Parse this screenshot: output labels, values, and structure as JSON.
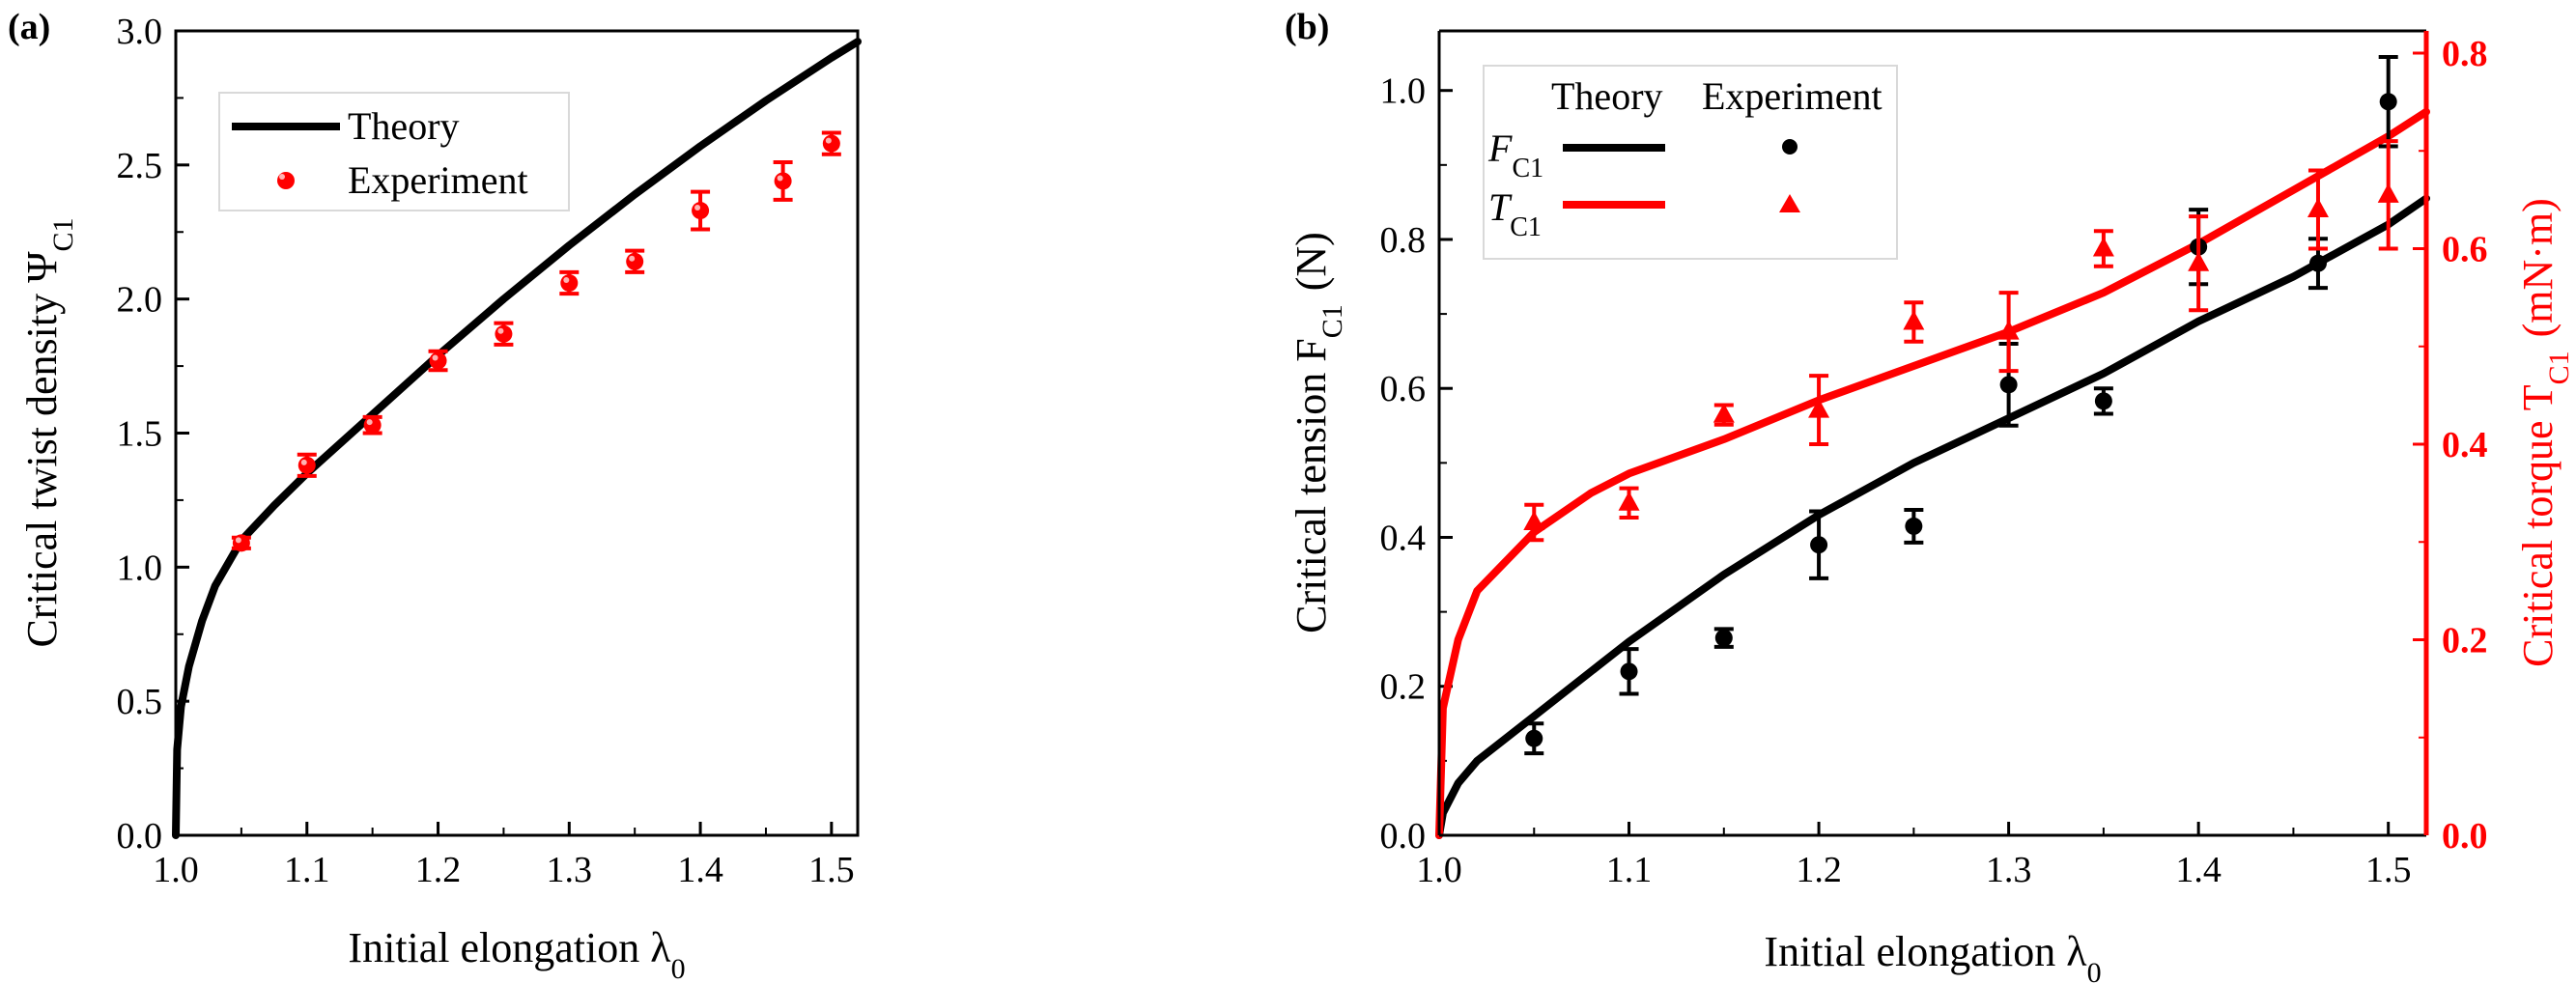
{
  "colors": {
    "theory_black": "#000000",
    "theory_red": "#ff0000",
    "axis_red": "#ff0000",
    "legend_border": "#d9d9d9"
  },
  "chart_data": [
    {
      "panel_label": "(a)",
      "type": "line",
      "xlabel": "Initial elongation  λ",
      "xlabel_sub": "0",
      "ylabel": "Critical twist density  Ψ",
      "ylabel_sub": "C1",
      "xlim": [
        1.0,
        1.52
      ],
      "ylim": [
        0.0,
        3.0
      ],
      "x_ticks": [
        "1.0",
        "1.1",
        "1.2",
        "1.3",
        "1.4",
        "1.5"
      ],
      "y_ticks": [
        "0.0",
        "0.5",
        "1.0",
        "1.5",
        "2.0",
        "2.5",
        "3.0"
      ],
      "legend": {
        "position": "top-left",
        "theory_label": "Theory",
        "experiment_label": "Experiment"
      },
      "theory": {
        "color": "#000000",
        "x": [
          1.0,
          1.001,
          1.004,
          1.01,
          1.02,
          1.03,
          1.05,
          1.075,
          1.1,
          1.15,
          1.2,
          1.25,
          1.3,
          1.35,
          1.4,
          1.45,
          1.5,
          1.52
        ],
        "y": [
          0.0,
          0.32,
          0.48,
          0.63,
          0.8,
          0.93,
          1.1,
          1.23,
          1.35,
          1.57,
          1.79,
          2.0,
          2.2,
          2.39,
          2.57,
          2.74,
          2.9,
          2.96
        ]
      },
      "experiment": {
        "color": "#ff0000",
        "marker": "circle",
        "x": [
          1.05,
          1.1,
          1.15,
          1.2,
          1.25,
          1.3,
          1.35,
          1.4,
          1.463,
          1.5
        ],
        "y": [
          1.09,
          1.38,
          1.53,
          1.77,
          1.87,
          2.06,
          2.14,
          2.33,
          2.44,
          2.58
        ],
        "err": [
          0.02,
          0.04,
          0.03,
          0.035,
          0.04,
          0.04,
          0.04,
          0.07,
          0.07,
          0.04
        ]
      }
    },
    {
      "panel_label": "(b)",
      "type": "line",
      "xlabel": "Initial elongation  λ",
      "xlabel_sub": "0",
      "ylabel": "Critical tension  F",
      "ylabel_sub": "C1",
      "ylabel_unit": "(N)",
      "y2label": "Critical torque  T",
      "y2label_sub": "C1",
      "y2label_unit": "(mN·m)",
      "xlim": [
        1.0,
        1.52
      ],
      "ylim": [
        0.0,
        1.08
      ],
      "y2lim": [
        0.0,
        0.8
      ],
      "x_ticks": [
        "1.0",
        "1.1",
        "1.2",
        "1.3",
        "1.4",
        "1.5"
      ],
      "y_ticks": [
        "0.0",
        "0.2",
        "0.4",
        "0.6",
        "0.8",
        "1.0"
      ],
      "y2_ticks": [
        "0.0",
        "0.2",
        "0.4",
        "0.6",
        "0.8"
      ],
      "legend": {
        "position": "top-left",
        "header_theory": "Theory",
        "header_experiment": "Experiment",
        "row1_symbol": "F",
        "row1_sub": "C1",
        "row2_symbol": "T",
        "row2_sub": "C1"
      },
      "series": [
        {
          "name": "F",
          "axis": "left",
          "color": "#000000",
          "theory_x": [
            1.0,
            1.002,
            1.01,
            1.02,
            1.05,
            1.1,
            1.15,
            1.2,
            1.25,
            1.3,
            1.35,
            1.4,
            1.45,
            1.5,
            1.52
          ],
          "theory_y": [
            0.0,
            0.03,
            0.07,
            0.1,
            0.16,
            0.26,
            0.35,
            0.43,
            0.5,
            0.56,
            0.62,
            0.69,
            0.75,
            0.82,
            0.855
          ],
          "marker": "circle",
          "x": [
            1.05,
            1.1,
            1.15,
            1.2,
            1.25,
            1.3,
            1.35,
            1.4,
            1.463,
            1.5
          ],
          "y": [
            0.13,
            0.22,
            0.265,
            0.39,
            0.415,
            0.605,
            0.583,
            0.79,
            0.768,
            0.985
          ],
          "err": [
            0.02,
            0.03,
            0.012,
            0.045,
            0.022,
            0.055,
            0.017,
            0.05,
            0.033,
            0.06
          ]
        },
        {
          "name": "T",
          "axis": "right",
          "color": "#ff0000",
          "theory_x": [
            1.0,
            1.002,
            1.01,
            1.02,
            1.05,
            1.08,
            1.1,
            1.15,
            1.2,
            1.25,
            1.3,
            1.35,
            1.4,
            1.45,
            1.5,
            1.52
          ],
          "theory_y": [
            0.0,
            0.13,
            0.2,
            0.25,
            0.31,
            0.35,
            0.37,
            0.405,
            0.445,
            0.48,
            0.515,
            0.555,
            0.605,
            0.66,
            0.715,
            0.74
          ],
          "marker": "triangle",
          "x": [
            1.05,
            1.1,
            1.15,
            1.2,
            1.25,
            1.3,
            1.35,
            1.4,
            1.463,
            1.5
          ],
          "y": [
            0.32,
            0.34,
            0.43,
            0.435,
            0.525,
            0.515,
            0.6,
            0.585,
            0.64,
            0.655
          ],
          "err": [
            0.018,
            0.015,
            0.01,
            0.035,
            0.02,
            0.04,
            0.018,
            0.048,
            0.04,
            0.055
          ]
        }
      ]
    }
  ]
}
